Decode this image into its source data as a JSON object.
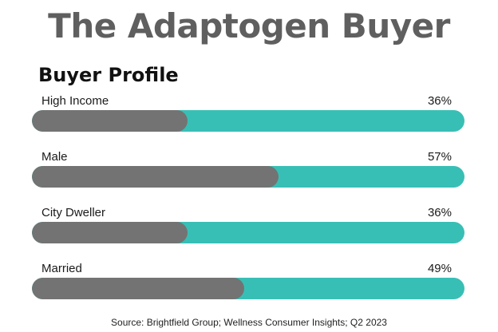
{
  "title": "The Adaptogen Buyer",
  "subtitle": "Buyer Profile",
  "source": "Source: Brightfield Group;  Wellness Consumer Insights; Q2 2023",
  "colors": {
    "fill": "#737373",
    "track": "#38bfb5",
    "title": "#5f5f5f"
  },
  "chart_data": {
    "type": "bar",
    "orientation": "horizontal",
    "title": "Buyer Profile",
    "categories": [
      "High Income",
      "Male",
      "City Dweller",
      "Married"
    ],
    "values": [
      36,
      57,
      36,
      49
    ],
    "value_labels": [
      "36%",
      "57%",
      "36%",
      "49%"
    ],
    "xlim": [
      0,
      100
    ],
    "grid": false
  }
}
